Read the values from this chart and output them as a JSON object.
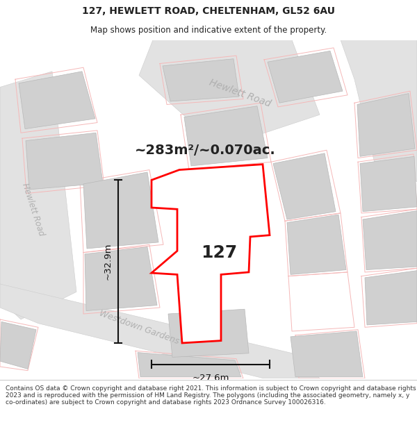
{
  "title_line1": "127, HEWLETT ROAD, CHELTENHAM, GL52 6AU",
  "title_line2": "Map shows position and indicative extent of the property.",
  "footer_text": "Contains OS data © Crown copyright and database right 2021. This information is subject to Crown copyright and database rights 2023 and is reproduced with the permission of HM Land Registry. The polygons (including the associated geometry, namely x, y co-ordinates) are subject to Crown copyright and database rights 2023 Ordnance Survey 100026316.",
  "area_label": "~283m²/~0.070ac.",
  "label_127": "127",
  "dim_horizontal": "~27.6m",
  "dim_vertical": "~32.9m",
  "road_label_hewlett_top": "Hewlett Road",
  "road_label_hewlett_left": "Hewlett Road",
  "road_label_westdown": "Westdown Gardens",
  "bg_color": "#ffffff",
  "map_bg": "#ffffff",
  "road_fill": "#e2e2e2",
  "road_edge": "#cccccc",
  "building_fill": "#d0d0d0",
  "building_edge": "#b8b8b8",
  "parcel_color": "#f5b8b8",
  "property_color": "#ff0000",
  "dim_color": "#111111",
  "text_dark": "#222222",
  "road_label_color": "#b0b0b0",
  "title_fontsize": 10,
  "subtitle_fontsize": 8.5,
  "footer_fontsize": 6.5,
  "area_fontsize": 14,
  "label_fontsize": 18,
  "dim_fontsize": 9.5,
  "road_label_fontsize": 10
}
